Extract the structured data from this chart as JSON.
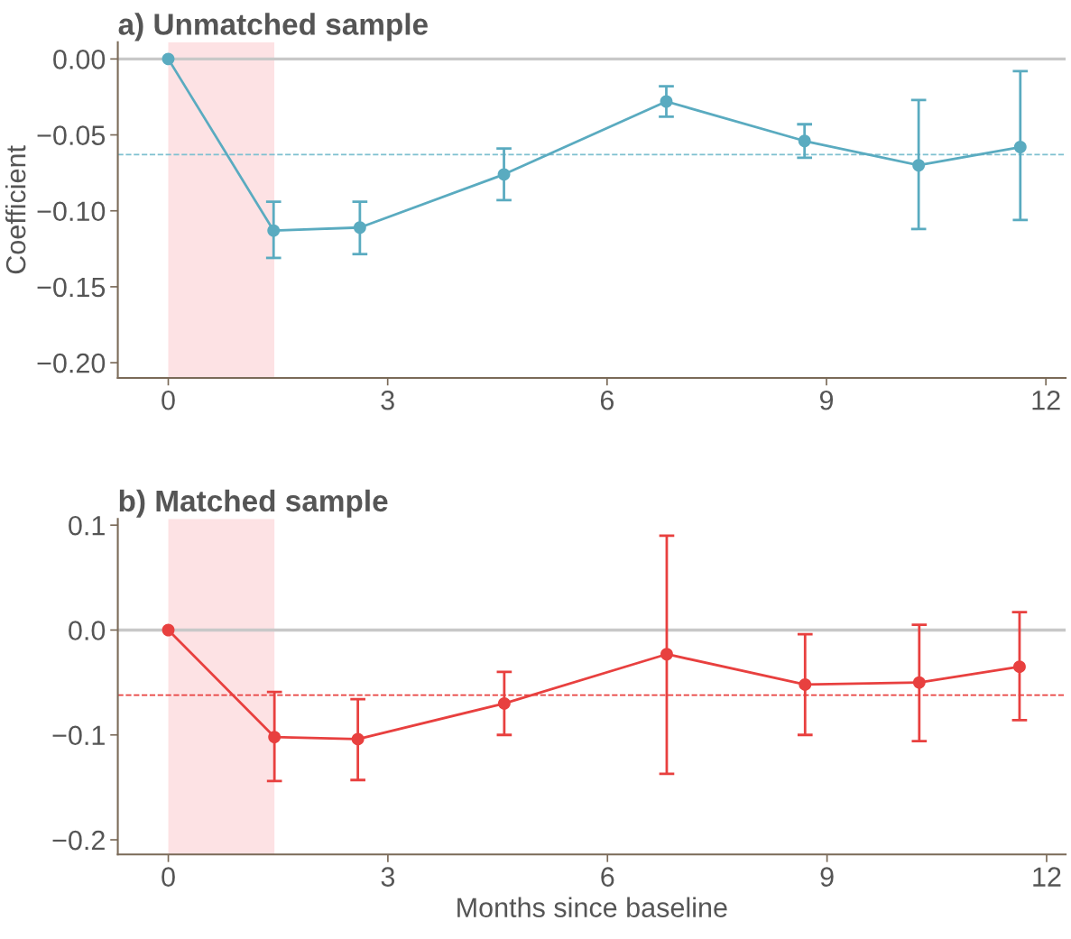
{
  "chart_data": [
    {
      "type": "line",
      "title": "a) Unmatched sample",
      "ylabel": "Coefficient",
      "x": [
        0,
        1.44,
        2.62,
        4.59,
        6.81,
        8.7,
        10.26,
        11.65
      ],
      "series": [
        {
          "color": "#5aabc0",
          "values": [
            0,
            -0.113,
            -0.111,
            -0.076,
            -0.028,
            -0.054,
            -0.07,
            -0.058
          ],
          "errors": [
            null,
            [
              -0.131,
              -0.094
            ],
            [
              -0.1285,
              -0.094
            ],
            [
              -0.093,
              -0.059
            ],
            [
              -0.038,
              -0.018
            ],
            [
              -0.065,
              -0.043
            ],
            [
              -0.112,
              -0.027
            ],
            [
              -0.106,
              -0.008
            ]
          ]
        }
      ],
      "xlim": [
        -0.69,
        12.27
      ],
      "ylim": [
        -0.21,
        0.011
      ],
      "xticks": [
        0,
        3,
        6,
        9,
        12
      ],
      "yticks": [
        {
          "value": 0,
          "label": "0.00"
        },
        {
          "value": -0.05,
          "label": "−0.05"
        },
        {
          "value": -0.1,
          "label": "−0.10"
        },
        {
          "value": -0.15,
          "label": "−0.15"
        },
        {
          "value": -0.2,
          "label": "−0.20"
        }
      ],
      "ref_lines": [
        {
          "axis": "y",
          "value": 0,
          "color": "#c8c8c8",
          "line_style": "solid"
        },
        {
          "axis": "y",
          "value": -0.063,
          "color": "#7fc0d0",
          "line_style": "dashed"
        }
      ],
      "bands": [
        {
          "axis": "x",
          "from": 0,
          "to": 1.45,
          "color": "#fde2e4"
        }
      ],
      "grid": false,
      "marker": "circle",
      "line_style": "solid"
    },
    {
      "type": "line",
      "title": "b) Matched sample",
      "xlabel": "Months since baseline",
      "x": [
        0,
        1.45,
        2.59,
        4.59,
        6.81,
        8.7,
        10.26,
        11.63
      ],
      "series": [
        {
          "color": "#e8403f",
          "values": [
            0,
            -0.102,
            -0.104,
            -0.07,
            -0.023,
            -0.052,
            -0.05,
            -0.035
          ],
          "errors": [
            null,
            [
              -0.144,
              -0.059
            ],
            [
              -0.143,
              -0.066
            ],
            [
              -0.1,
              -0.04
            ],
            [
              -0.137,
              0.09
            ],
            [
              -0.1,
              -0.004
            ],
            [
              -0.106,
              0.005
            ],
            [
              -0.086,
              0.017
            ]
          ]
        }
      ],
      "xlim": [
        -0.69,
        12.26
      ],
      "ylim": [
        -0.214,
        0.106
      ],
      "xticks": [
        0,
        3,
        6,
        9,
        12
      ],
      "yticks": [
        {
          "value": 0.1,
          "label": "0.1"
        },
        {
          "value": 0,
          "label": "0.0"
        },
        {
          "value": -0.1,
          "label": "−0.1"
        },
        {
          "value": -0.2,
          "label": "−0.2"
        }
      ],
      "ref_lines": [
        {
          "axis": "y",
          "value": 0,
          "color": "#c8c8c8",
          "line_style": "solid"
        },
        {
          "axis": "y",
          "value": -0.062,
          "color": "#e8403f",
          "line_style": "dashed"
        }
      ],
      "bands": [
        {
          "axis": "x",
          "from": 0,
          "to": 1.45,
          "color": "#fde2e4"
        }
      ],
      "grid": false,
      "marker": "circle",
      "line_style": "solid"
    }
  ]
}
